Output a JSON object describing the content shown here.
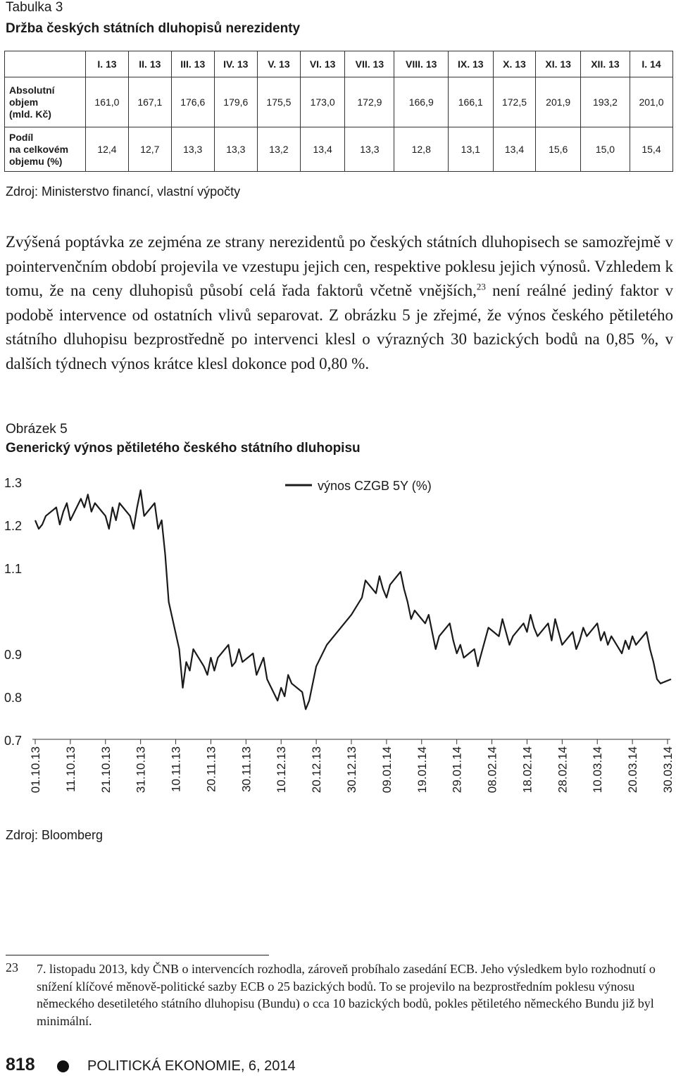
{
  "table": {
    "label": "Tabulka 3",
    "title": "Držba českých státních dluhopisů nerezidenty",
    "headers": [
      "I. 13",
      "II. 13",
      "III. 13",
      "IV. 13",
      "V. 13",
      "VI. 13",
      "VII. 13",
      "VIII. 13",
      "IX. 13",
      "X. 13",
      "XI. 13",
      "XII. 13",
      "I. 14"
    ],
    "rows": [
      {
        "label_lines": [
          "Absolutní",
          "objem",
          "(mld. Kč)"
        ],
        "values": [
          "161,0",
          "167,1",
          "176,6",
          "179,6",
          "175,5",
          "173,0",
          "172,9",
          "166,9",
          "166,1",
          "172,5",
          "201,9",
          "193,2",
          "201,0"
        ]
      },
      {
        "label_lines": [
          "Podíl",
          "na celkovém",
          "objemu (%)"
        ],
        "values": [
          "12,4",
          "12,7",
          "13,3",
          "13,3",
          "13,2",
          "13,4",
          "13,3",
          "12,8",
          "13,1",
          "13,4",
          "15,6",
          "15,0",
          "15,4"
        ]
      }
    ],
    "source": "Zdroj: Ministerstvo financí, vlastní výpočty"
  },
  "paragraph": {
    "part1": "Zvýšená poptávka ze zejména ze strany nerezidentů po českých státních dluhopisech se samozřejmě v pointervenčním období projevila ve vzestupu jejich cen, respektive poklesu jejich výnosů. Vzhledem k tomu, že na ceny dluhopisů působí celá řada faktorů včetně vnějších,",
    "footnote_ref": "23",
    "part2": " není reálné jediný faktor v podobě intervence od ostatních vlivů separovat. Z obrázku 5 je zřejmé, že výnos českého pětiletého státního dluhopisu bezprostředně po intervenci klesl o výrazných 30 bazických bodů na 0,85 %, v dalších týdnech výnos krátce klesl dokonce pod 0,80 %."
  },
  "figure": {
    "label": "Obrázek 5",
    "title": "Generický výnos pětiletého českého státního dluhopisu",
    "source": "Zdroj: Bloomberg"
  },
  "chart_data": {
    "type": "line",
    "title": "",
    "xlabel": "",
    "ylabel": "",
    "ylim": [
      0.7,
      1.3
    ],
    "yticks": [
      "1.3",
      "1.2",
      "1.1",
      "0.9",
      "0.8",
      "0.7"
    ],
    "ytick_values": [
      1.3,
      1.2,
      1.1,
      0.9,
      0.8,
      0.7
    ],
    "xticks": [
      "01.10.13",
      "11.10.13",
      "21.10.13",
      "31.10.13",
      "10.11.13",
      "20.11.13",
      "30.11.13",
      "10.12.13",
      "20.12.13",
      "30.12.13",
      "09.01.14",
      "19.01.14",
      "29.01.14",
      "08.02.14",
      "18.02.14",
      "28.02.14",
      "10.03.14",
      "20.03.14",
      "30.03.14"
    ],
    "grid": false,
    "legend_position": "top-center",
    "series": [
      {
        "name": "výnos CZGB 5Y (%)",
        "color": "#1a1a1a",
        "x": [
          "2013-10-01",
          "2013-10-02",
          "2013-10-03",
          "2013-10-04",
          "2013-10-07",
          "2013-10-08",
          "2013-10-09",
          "2013-10-10",
          "2013-10-11",
          "2013-10-14",
          "2013-10-15",
          "2013-10-16",
          "2013-10-17",
          "2013-10-18",
          "2013-10-21",
          "2013-10-22",
          "2013-10-23",
          "2013-10-24",
          "2013-10-25",
          "2013-10-28",
          "2013-10-29",
          "2013-10-30",
          "2013-10-31",
          "2013-11-01",
          "2013-11-04",
          "2013-11-05",
          "2013-11-06",
          "2013-11-07",
          "2013-11-08",
          "2013-11-11",
          "2013-11-12",
          "2013-11-13",
          "2013-11-14",
          "2013-11-15",
          "2013-11-18",
          "2013-11-19",
          "2013-11-20",
          "2013-11-21",
          "2013-11-22",
          "2013-11-25",
          "2013-11-26",
          "2013-11-27",
          "2013-11-28",
          "2013-11-29",
          "2013-12-02",
          "2013-12-03",
          "2013-12-04",
          "2013-12-05",
          "2013-12-06",
          "2013-12-09",
          "2013-12-10",
          "2013-12-11",
          "2013-12-12",
          "2013-12-13",
          "2013-12-16",
          "2013-12-17",
          "2013-12-18",
          "2013-12-19",
          "2013-12-20",
          "2013-12-23",
          "2013-12-27",
          "2013-12-30",
          "2014-01-02",
          "2014-01-03",
          "2014-01-06",
          "2014-01-07",
          "2014-01-08",
          "2014-01-09",
          "2014-01-10",
          "2014-01-13",
          "2014-01-14",
          "2014-01-15",
          "2014-01-16",
          "2014-01-17",
          "2014-01-20",
          "2014-01-21",
          "2014-01-22",
          "2014-01-23",
          "2014-01-24",
          "2014-01-27",
          "2014-01-28",
          "2014-01-29",
          "2014-01-30",
          "2014-01-31",
          "2014-02-03",
          "2014-02-04",
          "2014-02-05",
          "2014-02-06",
          "2014-02-07",
          "2014-02-10",
          "2014-02-11",
          "2014-02-12",
          "2014-02-13",
          "2014-02-14",
          "2014-02-17",
          "2014-02-18",
          "2014-02-19",
          "2014-02-20",
          "2014-02-21",
          "2014-02-24",
          "2014-02-25",
          "2014-02-26",
          "2014-02-27",
          "2014-02-28",
          "2014-03-03",
          "2014-03-04",
          "2014-03-05",
          "2014-03-06",
          "2014-03-07",
          "2014-03-10",
          "2014-03-11",
          "2014-03-12",
          "2014-03-13",
          "2014-03-14",
          "2014-03-17",
          "2014-03-18",
          "2014-03-19",
          "2014-03-20",
          "2014-03-21",
          "2014-03-24",
          "2014-03-25",
          "2014-03-26",
          "2014-03-27",
          "2014-03-28",
          "2014-03-31"
        ],
        "y": [
          1.21,
          1.19,
          1.2,
          1.22,
          1.24,
          1.2,
          1.23,
          1.25,
          1.21,
          1.26,
          1.24,
          1.27,
          1.23,
          1.25,
          1.22,
          1.19,
          1.24,
          1.21,
          1.25,
          1.22,
          1.19,
          1.24,
          1.28,
          1.22,
          1.25,
          1.19,
          1.21,
          1.13,
          1.02,
          0.91,
          0.82,
          0.88,
          0.86,
          0.91,
          0.87,
          0.85,
          0.89,
          0.86,
          0.89,
          0.92,
          0.87,
          0.88,
          0.91,
          0.88,
          0.9,
          0.85,
          0.87,
          0.89,
          0.84,
          0.79,
          0.82,
          0.8,
          0.85,
          0.83,
          0.81,
          0.77,
          0.79,
          0.83,
          0.87,
          0.92,
          0.96,
          0.99,
          1.03,
          1.07,
          1.04,
          1.08,
          1.05,
          1.03,
          1.06,
          1.09,
          1.05,
          1.02,
          0.98,
          1.0,
          0.97,
          0.99,
          0.95,
          0.91,
          0.94,
          0.97,
          0.93,
          0.9,
          0.92,
          0.89,
          0.91,
          0.87,
          0.9,
          0.93,
          0.96,
          0.94,
          0.98,
          0.95,
          0.92,
          0.94,
          0.97,
          0.95,
          0.99,
          0.96,
          0.94,
          0.97,
          0.93,
          0.98,
          0.95,
          0.92,
          0.95,
          0.91,
          0.93,
          0.96,
          0.94,
          0.97,
          0.93,
          0.95,
          0.92,
          0.94,
          0.9,
          0.93,
          0.91,
          0.94,
          0.92,
          0.95,
          0.91,
          0.88,
          0.84,
          0.83,
          0.84
        ]
      }
    ]
  },
  "footnote": {
    "number": "23",
    "text": "7. listopadu 2013, kdy ČNB o intervencích rozhodla, zároveň probíhalo zasedání ECB. Jeho výsledkem bylo rozhodnutí o snížení klíčové měnově-politické sazby ECB o 25 bazických bodů. To se projevilo na bezprostředním poklesu výnosu německého desetiletého státního dluhopisu (Bundu) o cca 10 bazických bodů, pokles pětiletého německého Bundu již byl minimální."
  },
  "footer": {
    "page_number": "818",
    "journal": "POLITICKÁ EKONOMIE, 6, 2014"
  }
}
